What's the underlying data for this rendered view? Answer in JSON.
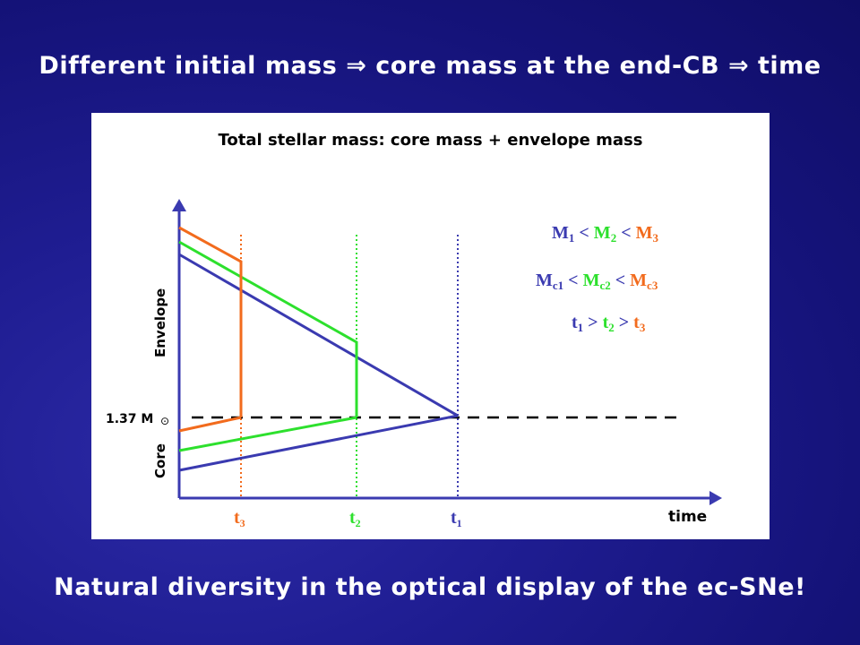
{
  "slide": {
    "title": "Different initial mass ⇒ core mass at the end-CB ⇒ time",
    "footer": "Natural diversity in the optical display of the ec-SNe!"
  },
  "diagram": {
    "panel_title": "Total stellar mass: core mass + envelope mass",
    "y_label_envelope": "Envelope",
    "y_label_core": "Core",
    "threshold_label": "1.37 M",
    "threshold_symbol": "⊙",
    "x_label": "time",
    "t_labels": [
      {
        "base": "t",
        "sub": "3",
        "color": "#f26b1d"
      },
      {
        "base": "t",
        "sub": "2",
        "color": "#2de02d"
      },
      {
        "base": "t",
        "sub": "1",
        "color": "#3a3ab0"
      }
    ],
    "relations": {
      "mass": {
        "items": [
          {
            "t": "M",
            "s": "1",
            "c": "#3a3ab0"
          },
          {
            "t": "M",
            "s": "2",
            "c": "#2de02d"
          },
          {
            "t": "M",
            "s": "3",
            "c": "#f26b1d"
          }
        ],
        "op": "<"
      },
      "core": {
        "items": [
          {
            "t": "M",
            "s": "c1",
            "c": "#3a3ab0"
          },
          {
            "t": "M",
            "s": "c2",
            "c": "#2de02d"
          },
          {
            "t": "M",
            "s": "c3",
            "c": "#f26b1d"
          }
        ],
        "op": "<"
      },
      "time": {
        "items": [
          {
            "t": "t",
            "s": "1",
            "c": "#3a3ab0"
          },
          {
            "t": "t",
            "s": "2",
            "c": "#2de02d"
          },
          {
            "t": "t",
            "s": "3",
            "c": "#f26b1d"
          }
        ],
        "op": ">"
      }
    },
    "colors": {
      "star3": "#f26b1d",
      "star2": "#2de02d",
      "star1": "#3a3ab0",
      "axis": "#3a3ab0",
      "threshold": "#000000"
    }
  }
}
